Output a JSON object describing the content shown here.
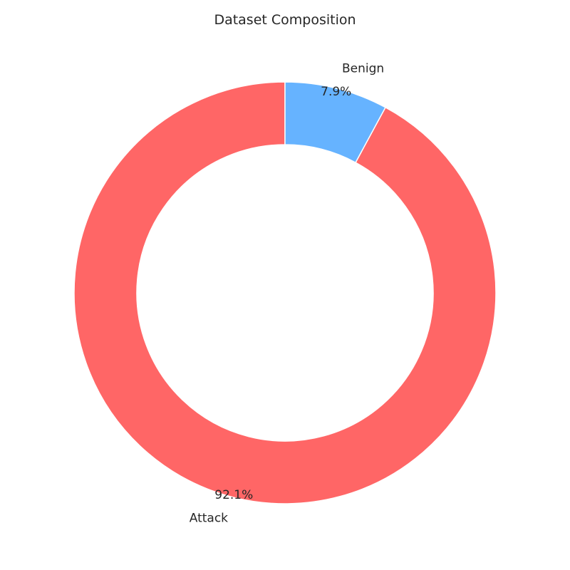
{
  "chart_data": {
    "type": "pie",
    "title": "Dataset Composition",
    "donut": true,
    "start_angle_deg": 90,
    "direction": "counterclockwise",
    "slices": [
      {
        "label": "Attack",
        "value": 92.1,
        "pct_label": "92.1%",
        "color": "#ff6666"
      },
      {
        "label": "Benign",
        "value": 7.9,
        "pct_label": "7.9%",
        "color": "#66b3ff"
      }
    ],
    "edge_color": "#ffffff"
  }
}
